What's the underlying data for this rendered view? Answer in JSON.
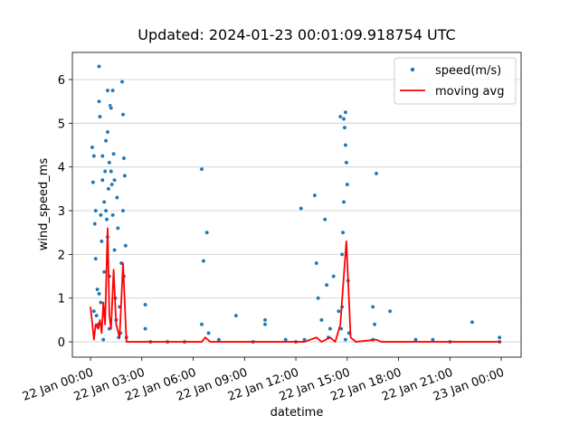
{
  "chart_data": {
    "type": "scatter",
    "title": "Updated: 2024-01-23 00:01:09.918754 UTC",
    "x_label": "datetime",
    "y_label": "wind_speed_ms",
    "xlim": [
      -1.06,
      25.16
    ],
    "ylim": [
      -0.35,
      6.62
    ],
    "xticks": [
      {
        "value": 0,
        "label": "22 Jan 00:00"
      },
      {
        "value": 3,
        "label": "22 Jan 03:00"
      },
      {
        "value": 6,
        "label": "22 Jan 06:00"
      },
      {
        "value": 9,
        "label": "22 Jan 09:00"
      },
      {
        "value": 12,
        "label": "22 Jan 12:00"
      },
      {
        "value": 15,
        "label": "22 Jan 15:00"
      },
      {
        "value": 18,
        "label": "22 Jan 18:00"
      },
      {
        "value": 21,
        "label": "22 Jan 21:00"
      },
      {
        "value": 24,
        "label": "23 Jan 00:00"
      }
    ],
    "yticks": [
      0,
      1,
      2,
      3,
      4,
      5,
      6
    ],
    "grid": true,
    "legend": "upper right",
    "series": [
      {
        "name": "speed(m/s)",
        "type": "scatter",
        "color": "#1f77b4",
        "x": [
          0.1,
          0.15,
          0.2,
          0.25,
          0.3,
          0.35,
          0.4,
          0.5,
          0.5,
          0.55,
          0.6,
          0.65,
          0.7,
          0.8,
          0.85,
          0.9,
          0.95,
          1.0,
          1.0,
          1.05,
          1.1,
          1.1,
          1.15,
          1.2,
          1.25,
          1.3,
          1.35,
          1.4,
          1.45,
          1.5,
          1.55,
          1.6,
          1.7,
          1.75,
          1.8,
          1.85,
          1.9,
          1.95,
          2.0,
          2.05,
          2.1,
          0.75,
          1.65,
          0.45,
          0.3,
          0.6,
          0.7,
          0.9,
          1.0,
          1.2,
          1.3,
          1.4,
          1.1,
          0.8,
          0.5,
          0.2,
          1.9,
          1.95,
          3.2,
          3.2,
          6.5,
          6.6,
          6.8,
          6.5,
          6.9,
          7.5,
          8.5,
          10.2,
          10.2,
          12.3,
          12.5,
          13.1,
          13.2,
          13.3,
          13.5,
          13.7,
          13.8,
          14.2,
          14.6,
          14.8,
          14.9,
          14.85,
          14.9,
          14.95,
          15.0,
          14.8,
          14.75,
          14.7,
          15.05,
          14.7,
          14.65,
          15.1,
          14.9,
          14.5,
          14.0,
          13.9,
          16.5,
          16.6,
          16.7,
          17.5,
          16.5,
          19.0,
          22.3,
          23.9,
          23.9,
          11.4,
          9.5,
          12.0,
          4.5,
          20,
          21,
          5.5,
          3.5
        ],
        "values": [
          4.45,
          3.65,
          4.25,
          2.7,
          1.9,
          0.6,
          1.2,
          6.3,
          5.5,
          5.15,
          0.9,
          2.3,
          4.25,
          3.2,
          3.9,
          4.6,
          2.8,
          5.75,
          4.8,
          3.5,
          1.5,
          0.3,
          5.4,
          5.35,
          3.6,
          5.75,
          4.3,
          2.1,
          1.0,
          0.5,
          3.3,
          2.6,
          0.8,
          0.2,
          1.8,
          5.95,
          5.2,
          4.2,
          3.8,
          2.2,
          0.1,
          0.05,
          0.1,
          0.4,
          3.0,
          2.9,
          3.7,
          3.0,
          2.4,
          3.9,
          2.9,
          3.7,
          4.1,
          1.6,
          1.1,
          0.7,
          3.0,
          1.5,
          0.85,
          0.3,
          3.95,
          1.85,
          2.5,
          0.4,
          0.2,
          0.05,
          0.6,
          0.5,
          0.4,
          3.05,
          0.05,
          3.35,
          1.8,
          1.0,
          0.5,
          2.8,
          1.3,
          1.5,
          5.15,
          5.1,
          5.25,
          4.9,
          4.5,
          4.1,
          3.6,
          3.2,
          2.5,
          2.0,
          1.4,
          0.8,
          0.3,
          0.2,
          0.05,
          0.7,
          0.3,
          0.1,
          0.8,
          0.4,
          3.85,
          0.7,
          0.05,
          0.05,
          0.45,
          0.1,
          0.0,
          0.05,
          0.0,
          0.0,
          0.0,
          0.05,
          0.0,
          0.0,
          0.0
        ]
      },
      {
        "name": "moving avg",
        "type": "line",
        "color": "#ff0000",
        "x": [
          0,
          0.2,
          0.3,
          0.45,
          0.55,
          0.65,
          0.75,
          0.85,
          1.0,
          1.1,
          1.2,
          1.35,
          1.5,
          1.7,
          1.9,
          2.1,
          6.5,
          6.7,
          7.0,
          12.5,
          13.2,
          13.5,
          14.0,
          14.3,
          14.6,
          14.8,
          14.95,
          15.2,
          15.5,
          16.7,
          17,
          24
        ],
        "values": [
          0.8,
          0.05,
          0.4,
          0.3,
          0.5,
          0.2,
          0.9,
          0.4,
          2.6,
          0.6,
          0.3,
          1.65,
          0.4,
          0.1,
          1.8,
          0.0,
          0.0,
          0.1,
          0.0,
          0.0,
          0.1,
          0.0,
          0.1,
          0.0,
          0.4,
          1.5,
          2.3,
          0.1,
          0.0,
          0.05,
          0,
          0
        ]
      }
    ]
  }
}
